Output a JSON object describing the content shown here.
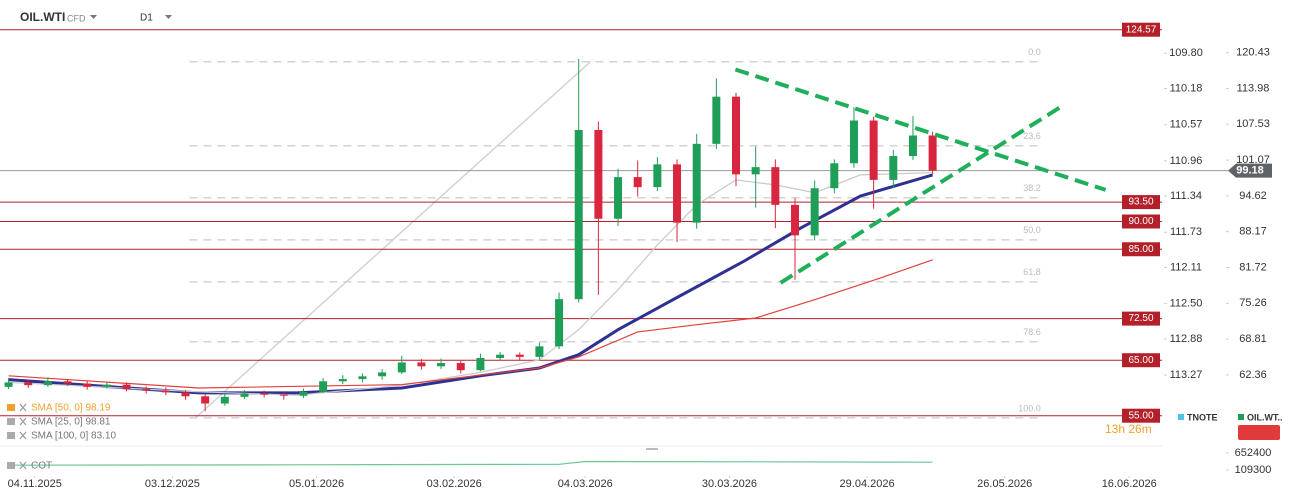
{
  "header": {
    "symbol": "OIL.WTI",
    "market": "CFD",
    "timeframe": "D1"
  },
  "chart_data": {
    "type": "candlestick",
    "x": [
      -4,
      -1,
      2,
      5,
      8,
      11,
      14,
      17,
      20,
      23,
      26,
      29,
      32,
      35,
      38,
      41,
      44,
      47,
      50,
      53,
      56,
      59,
      62,
      65,
      68,
      71,
      74,
      77,
      80,
      83,
      86,
      89,
      92,
      95,
      98,
      101,
      104,
      107,
      110,
      113,
      116,
      119,
      122,
      125,
      128,
      131,
      134,
      137
    ],
    "open": [
      60.2,
      61.0,
      60.5,
      61.2,
      60.8,
      60.2,
      60.6,
      59.8,
      59.5,
      59.2,
      58.5,
      57.2,
      58.4,
      59.0,
      58.8,
      58.6,
      59.3,
      61.2,
      61.6,
      62.1,
      62.8,
      64.6,
      63.9,
      64.5,
      63.2,
      65.4,
      66.0,
      65.6,
      67.5,
      76.0,
      106.5,
      90.5,
      98.0,
      96.2,
      100.3,
      89.8,
      104.0,
      112.5,
      98.5,
      99.8,
      93.0,
      87.5,
      96.0,
      100.5,
      108.2,
      97.5,
      101.8,
      105.5
    ],
    "high": [
      61.8,
      61.5,
      61.9,
      61.6,
      61.3,
      61.1,
      61.0,
      60.3,
      60.1,
      59.6,
      58.9,
      58.9,
      59.6,
      59.5,
      59.2,
      59.9,
      61.8,
      62.3,
      62.6,
      63.4,
      65.8,
      65.2,
      65.3,
      64.9,
      66.2,
      66.5,
      66.4,
      68.2,
      77.2,
      119.3,
      108.0,
      99.5,
      101.0,
      101.6,
      101.2,
      105.8,
      115.8,
      113.2,
      103.5,
      101.2,
      94.2,
      97.4,
      101.2,
      110.6,
      108.9,
      102.9,
      109.0,
      106.2
    ],
    "low": [
      59.8,
      60.0,
      60.2,
      60.4,
      59.7,
      59.9,
      59.4,
      59.0,
      58.7,
      57.9,
      55.8,
      56.8,
      58.0,
      58.3,
      57.9,
      58.2,
      59.1,
      60.7,
      61.0,
      61.5,
      62.5,
      63.3,
      63.4,
      62.6,
      63.0,
      65.0,
      64.9,
      65.1,
      67.0,
      75.4,
      76.8,
      89.2,
      94.5,
      95.5,
      86.3,
      88.7,
      103.1,
      96.4,
      92.5,
      88.8,
      79.5,
      86.6,
      95.1,
      99.7,
      92.3,
      96.0,
      101.1,
      98.5
    ],
    "close": [
      61.0,
      60.5,
      61.2,
      60.8,
      60.2,
      60.6,
      59.8,
      59.5,
      59.2,
      58.5,
      57.2,
      58.4,
      59.0,
      58.8,
      58.6,
      59.3,
      61.2,
      61.6,
      62.1,
      62.8,
      64.6,
      63.9,
      64.5,
      63.2,
      65.4,
      66.0,
      65.6,
      67.5,
      76.0,
      106.5,
      90.5,
      98.0,
      96.2,
      100.3,
      89.8,
      104.0,
      112.5,
      98.5,
      99.8,
      93.0,
      87.5,
      96.0,
      100.5,
      108.2,
      97.5,
      101.8,
      105.5,
      99.18
    ],
    "up_color": "#1f9e58",
    "down_color": "#d7263d",
    "xlim": [
      -5,
      172
    ],
    "xticks": [
      {
        "value": 0,
        "label": "04.11.2025"
      },
      {
        "value": 21,
        "label": "03.12.2025"
      },
      {
        "value": 43,
        "label": "05.01.2026"
      },
      {
        "value": 64,
        "label": "03.02.2026"
      },
      {
        "value": 84,
        "label": "04.03.2026"
      },
      {
        "value": 106,
        "label": "30.03.2026"
      },
      {
        "value": 127,
        "label": "29.04.2026"
      },
      {
        "value": 148,
        "label": "26.05.2026"
      },
      {
        "value": 167,
        "label": "16.06.2026"
      }
    ],
    "ylim": [
      50.8,
      126.5
    ],
    "yticks": [
      120.43,
      113.98,
      107.53,
      101.07,
      94.62,
      88.17,
      81.72,
      75.26,
      68.81,
      62.36
    ],
    "y2lim": [
      113.96,
      109.43
    ],
    "y2ticks": [
      {
        "value": 109.8,
        "label": "109.80"
      },
      110.18,
      110.57,
      110.96,
      111.34,
      111.73,
      112.11,
      {
        "value": 112.5,
        "label": "112.50"
      },
      112.88,
      113.27
    ],
    "last_price": 99.18,
    "levels": [
      124.57,
      {
        "value": 93.5,
        "label": "93.50"
      },
      {
        "value": 90,
        "label": "90.00"
      },
      {
        "value": 85,
        "label": "85.00"
      },
      {
        "value": 72.5,
        "label": "72.50"
      },
      {
        "value": 65,
        "label": "65.00"
      },
      {
        "value": 55,
        "label": "55.00"
      }
    ],
    "level_color": "#b3202a",
    "overlays": [
      {
        "name": "SMA [50, 0] 98.19",
        "color": "#2e3192",
        "x": [
          -4,
          25,
          40,
          56,
          68,
          77,
          83,
          89,
          98,
          108,
          117,
          126,
          137
        ],
        "values": [
          61.5,
          59.1,
          59.1,
          60,
          62.2,
          63.6,
          66,
          70.5,
          76.3,
          82.7,
          88.9,
          94.6,
          98.4
        ]
      },
      {
        "name": "SMA [25, 0] 98.81",
        "color": "#c9c9c9",
        "x": [
          -4,
          25,
          40,
          56,
          68,
          77,
          83,
          89,
          95,
          101,
          107,
          113,
          119,
          126,
          137
        ],
        "values": [
          61,
          59.3,
          58.7,
          60.5,
          62.8,
          65.1,
          70.5,
          77.7,
          85.8,
          93,
          97.5,
          96.6,
          95.2,
          98.4,
          98.8
        ]
      },
      {
        "name": "SMA [100, 0] 83.10",
        "color": "#e0413c",
        "x": [
          -4,
          25,
          56,
          77,
          83,
          92,
          101,
          110,
          119,
          129,
          137
        ],
        "values": [
          62.2,
          60,
          60.6,
          63.6,
          65.6,
          70.1,
          71.4,
          72.6,
          75.9,
          79.8,
          83.1
        ]
      }
    ],
    "fib": {
      "color": "#d3d3d3",
      "x": [
        24.5,
        84.8
      ],
      "values": [
        54.6,
        118.8
      ],
      "extent": 153.5,
      "levels": [
        {
          "value": 0,
          "label": "0.0"
        },
        23.6,
        38.2,
        {
          "value": 50,
          "label": "50.0"
        },
        61.8,
        78.6,
        {
          "value": 100,
          "label": "100.0"
        }
      ]
    },
    "trendlines": {
      "color": "#1fae5a",
      "lines": [
        {
          "x": [
            106.9,
            163.4
          ],
          "values": [
            117.4,
            95.7
          ]
        },
        {
          "x": [
            113.8,
            156.6
          ],
          "values": [
            78.95,
            110.7
          ]
        }
      ]
    },
    "countdown": "13h 26m",
    "legend": [
      {
        "name": "TNOTE",
        "color": "#4fc3e8"
      },
      {
        "name": "OIL.WT..",
        "color": "#1f9e58"
      }
    ]
  },
  "cot": {
    "type": "line",
    "name": "COT",
    "color": "#6cc795",
    "x": [
      -4,
      40,
      80,
      84,
      110,
      137
    ],
    "values": [
      262000,
      275000,
      290000,
      380000,
      372000,
      360000
    ],
    "ylim": [
      -146300,
      876000
    ],
    "yticks": [
      652400,
      109300
    ]
  }
}
